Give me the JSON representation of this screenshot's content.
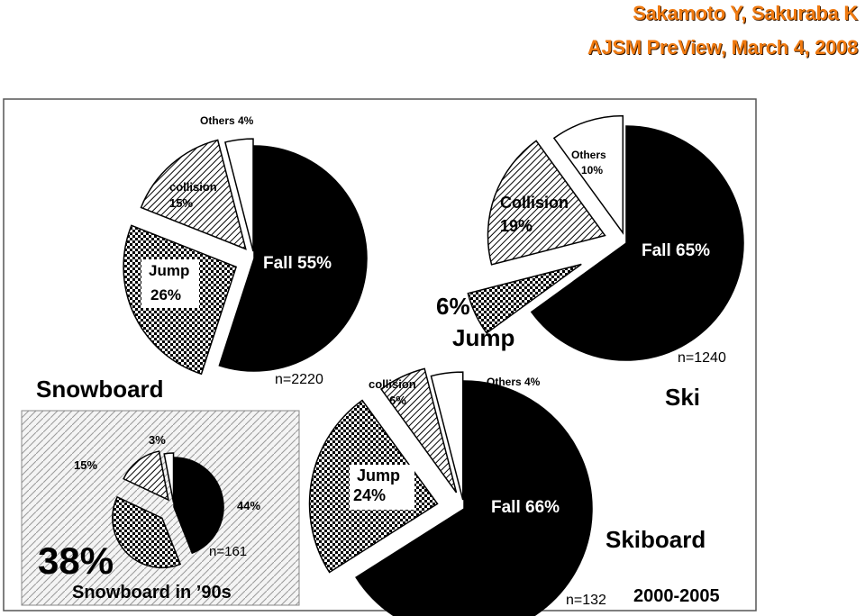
{
  "header": {
    "authors": "Sakamoto Y, Sakuraba K",
    "journal": "AJSM PreView, March 4, 2008"
  },
  "colors": {
    "header_text": "#f07a10",
    "fall": "#000000",
    "others": "#ffffff"
  },
  "figure_labels": {
    "years": "2000-2005"
  },
  "chart_data": [
    {
      "type": "pie",
      "title": "Snowboard",
      "n": "n=2220",
      "slices": [
        {
          "name": "Fall",
          "value": 55,
          "label": "Fall  55%",
          "fill": "solid"
        },
        {
          "name": "Jump",
          "value": 26,
          "label": "Jump 26%",
          "fill": "checker"
        },
        {
          "name": "collision",
          "value": 15,
          "label": "collision 15%",
          "fill": "hatch"
        },
        {
          "name": "Others",
          "value": 4,
          "label": "Others 4%",
          "fill": "white"
        }
      ]
    },
    {
      "type": "pie",
      "title": "Ski",
      "n": "n=1240",
      "slices": [
        {
          "name": "Fall",
          "value": 65,
          "label": "Fall  65%",
          "fill": "solid"
        },
        {
          "name": "Jump",
          "value": 6,
          "label": "6% Jump",
          "fill": "checker"
        },
        {
          "name": "Collision",
          "value": 19,
          "label": "Collision 19%",
          "fill": "hatch"
        },
        {
          "name": "Others",
          "value": 10,
          "label": "Others 10%",
          "fill": "white"
        }
      ]
    },
    {
      "type": "pie",
      "title": "Skiboard",
      "n": "n=132",
      "slices": [
        {
          "name": "Fall",
          "value": 66,
          "label": "Fall  66%",
          "fill": "solid"
        },
        {
          "name": "Jump",
          "value": 24,
          "label": "Jump 24%",
          "fill": "checker"
        },
        {
          "name": "collision",
          "value": 6,
          "label": "collision 6%",
          "fill": "hatch"
        },
        {
          "name": "Others",
          "value": 4,
          "label": "Others 4%",
          "fill": "white"
        }
      ]
    },
    {
      "type": "pie",
      "title": "Snowboard in ’90s",
      "n": "n=161",
      "slices": [
        {
          "name": "Fall",
          "value": 44,
          "label": "44%",
          "fill": "solid"
        },
        {
          "name": "Jump",
          "value": 38,
          "label": "38%",
          "fill": "checker"
        },
        {
          "name": "collision",
          "value": 15,
          "label": "15%",
          "fill": "hatch"
        },
        {
          "name": "Others",
          "value": 3,
          "label": "3%",
          "fill": "white"
        }
      ]
    }
  ]
}
